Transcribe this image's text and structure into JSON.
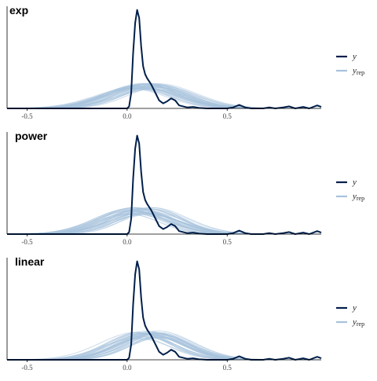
{
  "chart_data": [
    {
      "type": "line",
      "title": "exp",
      "xlim": [
        -0.6,
        0.97
      ],
      "ylim": [
        0,
        1
      ],
      "x_ticks": [
        {
          "value": -0.5,
          "label": "-0.5"
        },
        {
          "value": 0.0,
          "label": "0.0"
        },
        {
          "value": 0.5,
          "label": "0.5"
        }
      ],
      "y_density_peak": 0.98,
      "yrep_center": 0.1,
      "yrep_peak": 0.22,
      "yrep_spread": 0.17
    },
    {
      "type": "line",
      "title": "power",
      "xlim": [
        -0.6,
        0.97
      ],
      "ylim": [
        0,
        1
      ],
      "x_ticks": [
        {
          "value": -0.5,
          "label": "-0.5"
        },
        {
          "value": 0.0,
          "label": "0.0"
        },
        {
          "value": 0.5,
          "label": "0.5"
        }
      ],
      "y_density_peak": 0.98,
      "yrep_center": 0.07,
      "yrep_peak": 0.23,
      "yrep_spread": 0.16
    },
    {
      "type": "line",
      "title": "linear",
      "xlim": [
        -0.6,
        0.97
      ],
      "ylim": [
        0,
        1
      ],
      "x_ticks": [
        {
          "value": -0.5,
          "label": "-0.5"
        },
        {
          "value": 0.0,
          "label": "0.0"
        },
        {
          "value": 0.5,
          "label": "0.5"
        }
      ],
      "y_density_peak": 0.98,
      "yrep_center": 0.1,
      "yrep_peak": 0.25,
      "yrep_spread": 0.16
    }
  ],
  "legend": {
    "y_label": "y",
    "yrep_label": "y",
    "yrep_subscript": "rep",
    "y_color": "#011f4b",
    "yrep_color": "#a8c2dc"
  },
  "y_observed_density": [
    [
      -0.6,
      0.0
    ],
    [
      0.0,
      0.0
    ],
    [
      0.01,
      0.02
    ],
    [
      0.02,
      0.15
    ],
    [
      0.03,
      0.55
    ],
    [
      0.04,
      0.85
    ],
    [
      0.05,
      0.98
    ],
    [
      0.06,
      0.9
    ],
    [
      0.07,
      0.62
    ],
    [
      0.08,
      0.42
    ],
    [
      0.09,
      0.34
    ],
    [
      0.1,
      0.3
    ],
    [
      0.12,
      0.24
    ],
    [
      0.14,
      0.16
    ],
    [
      0.16,
      0.08
    ],
    [
      0.18,
      0.05
    ],
    [
      0.2,
      0.07
    ],
    [
      0.22,
      0.1
    ],
    [
      0.24,
      0.08
    ],
    [
      0.26,
      0.03
    ],
    [
      0.3,
      0.01
    ],
    [
      0.33,
      0.015
    ],
    [
      0.36,
      0.005
    ],
    [
      0.4,
      0.0
    ],
    [
      0.5,
      0.0
    ],
    [
      0.53,
      0.01
    ],
    [
      0.56,
      0.035
    ],
    [
      0.59,
      0.01
    ],
    [
      0.62,
      0.0
    ],
    [
      0.68,
      0.0
    ],
    [
      0.71,
      0.01
    ],
    [
      0.74,
      0.0
    ],
    [
      0.78,
      0.01
    ],
    [
      0.81,
      0.02
    ],
    [
      0.84,
      0.0
    ],
    [
      0.88,
      0.015
    ],
    [
      0.91,
      0.0
    ],
    [
      0.95,
      0.03
    ],
    [
      0.97,
      0.015
    ]
  ]
}
